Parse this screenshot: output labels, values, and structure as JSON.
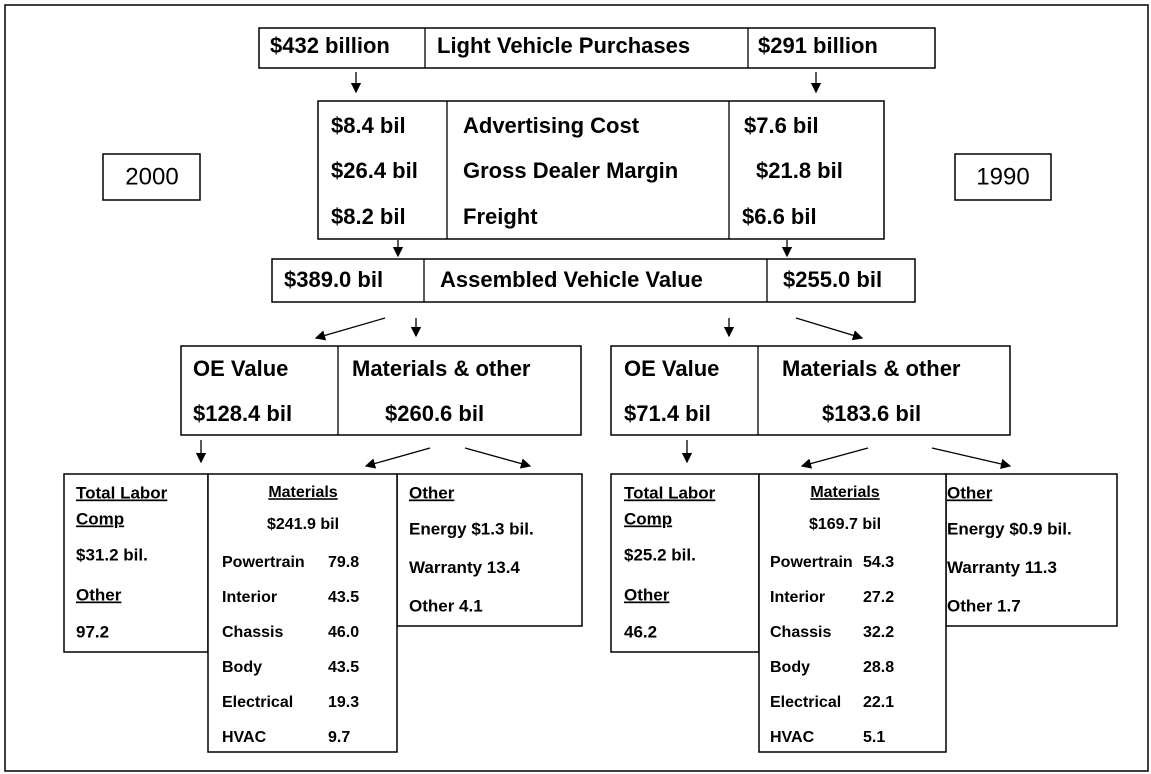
{
  "top_row": {
    "left": "$432 billion",
    "label": "Light Vehicle Purchases",
    "right": "$291 billion"
  },
  "year_left": "2000",
  "year_right": "1990",
  "cost_rows": [
    {
      "left": "$8.4 bil",
      "label": "Advertising Cost",
      "right": "$7.6 bil"
    },
    {
      "left": "$26.4 bil",
      "label": "Gross Dealer Margin",
      "right": "$21.8 bil"
    },
    {
      "left": "$8.2 bil",
      "label": "Freight",
      "right": "$6.6 bil"
    }
  ],
  "assembled": {
    "left": "$389.0 bil",
    "label": "Assembled Vehicle Value",
    "right": "$255.0 bil"
  },
  "panels": [
    {
      "oe_label": "OE Value",
      "oe_value": "$128.4 bil",
      "materials_label": "Materials & other",
      "materials_value": "$260.6 bil",
      "labor": {
        "title": [
          "Total Labor",
          "Comp"
        ],
        "value": "$31.2 bil.",
        "other_label": "Other",
        "other_value": "97.2"
      },
      "materials": {
        "title": "Materials",
        "total": "$241.9 bil",
        "items": [
          {
            "label": "Powertrain",
            "value": "79.8"
          },
          {
            "label": "Interior",
            "value": "43.5"
          },
          {
            "label": "Chassis",
            "value": "46.0"
          },
          {
            "label": "Body",
            "value": "43.5"
          },
          {
            "label": "Electrical",
            "value": "19.3"
          },
          {
            "label": "HVAC",
            "value": "9.7"
          }
        ]
      },
      "other": {
        "title": "Other",
        "lines": [
          "Energy $1.3 bil.",
          "Warranty 13.4",
          "Other 4.1"
        ]
      }
    },
    {
      "oe_label": "OE Value",
      "oe_value": "$71.4 bil",
      "materials_label": "Materials & other",
      "materials_value": "$183.6 bil",
      "labor": {
        "title": [
          "Total Labor",
          "Comp"
        ],
        "value": "$25.2 bil.",
        "other_label": "Other",
        "other_value": "46.2"
      },
      "materials": {
        "title": "Materials",
        "total": "$169.7 bil",
        "items": [
          {
            "label": "Powertrain",
            "value": "54.3"
          },
          {
            "label": "Interior",
            "value": "27.2"
          },
          {
            "label": "Chassis",
            "value": "32.2"
          },
          {
            "label": "Body",
            "value": "28.8"
          },
          {
            "label": "Electrical",
            "value": "22.1"
          },
          {
            "label": "HVAC",
            "value": "5.1"
          }
        ]
      },
      "other": {
        "title": "Other",
        "lines": [
          "Energy $0.9 bil.",
          "Warranty 11.3",
          "Other 1.7"
        ]
      }
    }
  ]
}
